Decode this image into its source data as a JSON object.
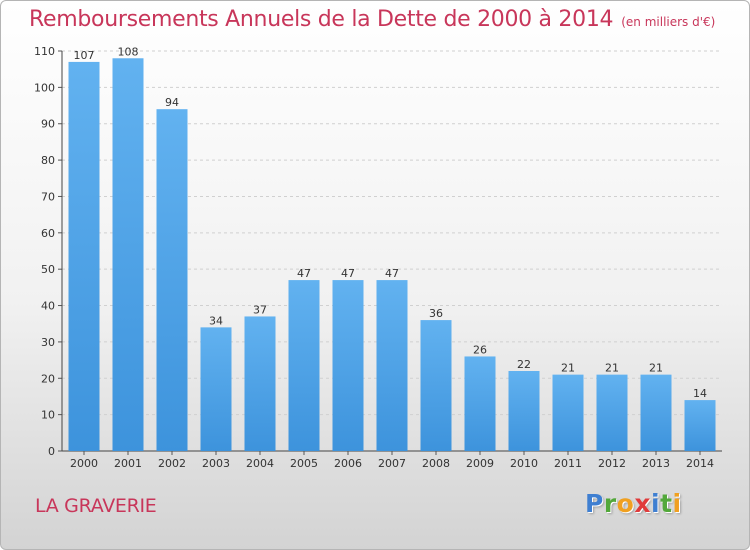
{
  "header": {
    "title": "Remboursements Annuels de la Dette de 2000 à 2014",
    "subtitle": "(en milliers d'€)"
  },
  "footer": {
    "commune": "LA GRAVERIE",
    "logo_letters": [
      "P",
      "r",
      "o",
      "x",
      "i",
      "t",
      "i"
    ]
  },
  "chart_data": {
    "type": "bar",
    "title": "Remboursements Annuels de la Dette de 2000 à 2014",
    "subtitle": "(en milliers d'€)",
    "xlabel": "",
    "ylabel": "",
    "categories": [
      "2000",
      "2001",
      "2002",
      "2003",
      "2004",
      "2005",
      "2006",
      "2007",
      "2008",
      "2009",
      "2010",
      "2011",
      "2012",
      "2013",
      "2014"
    ],
    "values": [
      107,
      108,
      94,
      34,
      37,
      47,
      47,
      47,
      36,
      26,
      22,
      21,
      21,
      21,
      14
    ],
    "ylim": [
      0,
      110
    ],
    "yticks": [
      0,
      10,
      20,
      30,
      40,
      50,
      60,
      70,
      80,
      90,
      100,
      110
    ],
    "grid": true,
    "bar_color": "#3d93dc",
    "bar_color_light": "#62b2f0",
    "grid_color": "#d0d0d0"
  }
}
